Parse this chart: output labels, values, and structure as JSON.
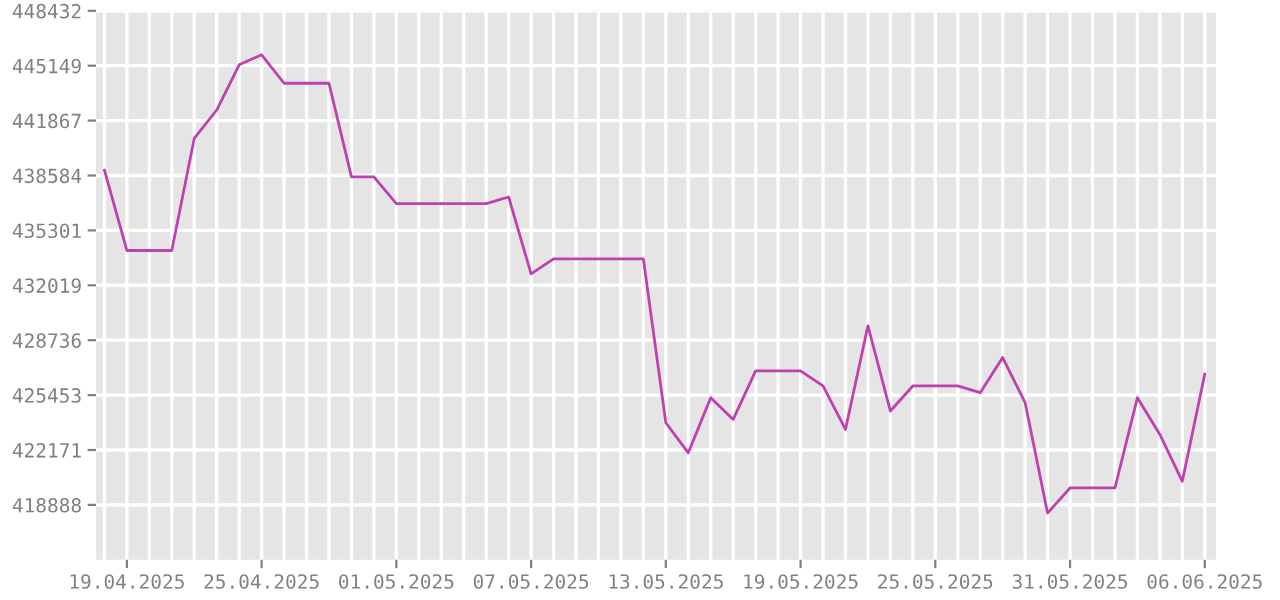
{
  "chart_data": {
    "type": "line",
    "x": [
      "2025-04-18",
      "2025-04-19",
      "2025-04-20",
      "2025-04-21",
      "2025-04-22",
      "2025-04-23",
      "2025-04-24",
      "2025-04-25",
      "2025-04-26",
      "2025-04-27",
      "2025-04-28",
      "2025-04-29",
      "2025-04-30",
      "2025-05-01",
      "2025-05-02",
      "2025-05-03",
      "2025-05-04",
      "2025-05-05",
      "2025-05-06",
      "2025-05-07",
      "2025-05-08",
      "2025-05-09",
      "2025-05-10",
      "2025-05-11",
      "2025-05-12",
      "2025-05-13",
      "2025-05-14",
      "2025-05-15",
      "2025-05-16",
      "2025-05-17",
      "2025-05-18",
      "2025-05-19",
      "2025-05-20",
      "2025-05-21",
      "2025-05-22",
      "2025-05-23",
      "2025-05-24",
      "2025-05-25",
      "2025-05-26",
      "2025-05-27",
      "2025-05-28",
      "2025-05-29",
      "2025-05-30",
      "2025-05-31",
      "2025-06-01",
      "2025-06-02",
      "2025-06-03",
      "2025-06-04",
      "2025-06-05",
      "2025-06-06"
    ],
    "series": [
      {
        "color": "#c040b0",
        "values": [
          438900,
          434100,
          434100,
          434100,
          440800,
          442500,
          445200,
          445800,
          444100,
          444100,
          444100,
          438500,
          438500,
          436900,
          436900,
          436900,
          436900,
          436900,
          437300,
          432700,
          433600,
          433600,
          433600,
          433600,
          433600,
          423800,
          422000,
          425300,
          424000,
          426900,
          426900,
          426900,
          426000,
          423400,
          429600,
          424500,
          426000,
          426000,
          426000,
          425600,
          427700,
          425000,
          418400,
          419900,
          419900,
          419900,
          425300,
          423100,
          420300,
          426700
        ]
      }
    ],
    "xlim": [
      "2025-04-17T15:00",
      "2025-06-06T12:00"
    ],
    "xticks": [
      {
        "value": "2025-04-19",
        "label": "19.04.2025"
      },
      {
        "value": "2025-04-25",
        "label": "25.04.2025"
      },
      {
        "value": "2025-05-01",
        "label": "01.05.2025"
      },
      {
        "value": "2025-05-07",
        "label": "07.05.2025"
      },
      {
        "value": "2025-05-13",
        "label": "13.05.2025"
      },
      {
        "value": "2025-05-19",
        "label": "19.05.2025"
      },
      {
        "value": "2025-05-25",
        "label": "25.05.2025"
      },
      {
        "value": "2025-05-31",
        "label": "31.05.2025"
      },
      {
        "value": "2025-06-06",
        "label": "06.06.2025"
      }
    ],
    "ylim": [
      415605,
      448432
    ],
    "yticks": [
      418888,
      422171,
      425453,
      428736,
      432019,
      435301,
      438584,
      441867,
      445149,
      448432
    ],
    "grid": true,
    "marker": "none",
    "line_style": "solid",
    "legend": false
  }
}
